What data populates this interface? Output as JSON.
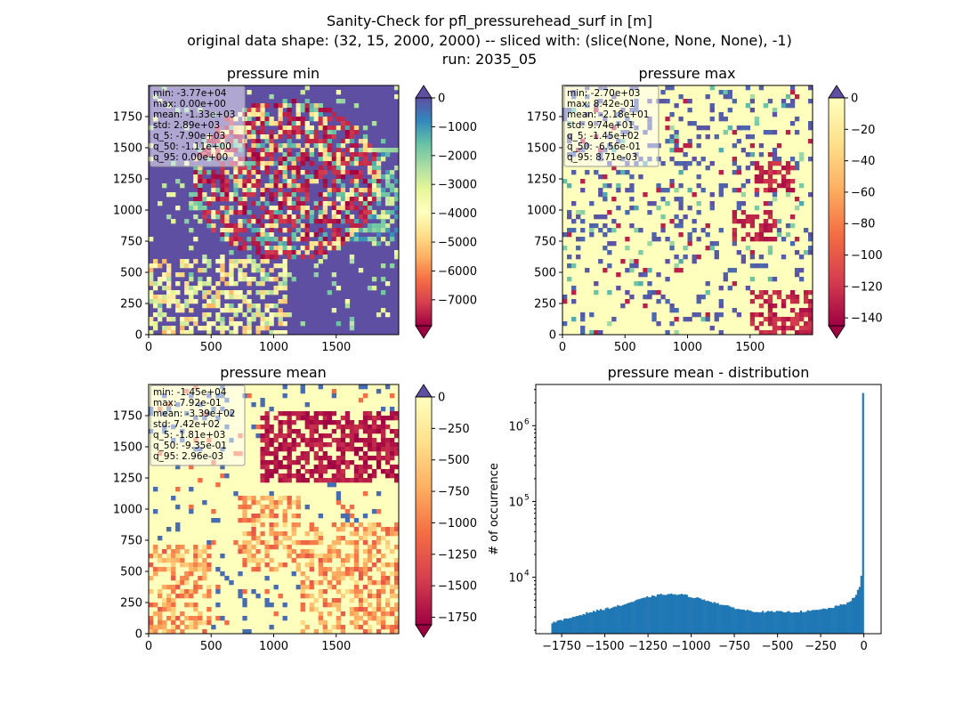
{
  "figure": {
    "title_lines": [
      "Sanity-Check for pfl_pressurehead_surf in [m]",
      "original data shape: (32, 15, 2000, 2000) -- sliced with: (slice(None, None, None), -1)",
      "run: 2035_05"
    ]
  },
  "chart_data": [
    {
      "type": "heatmap",
      "title": "pressure min",
      "colormap": "Spectral",
      "xticks": [
        "0",
        "500",
        "1000",
        "1500"
      ],
      "yticks": [
        "0",
        "250",
        "500",
        "750",
        "1000",
        "1250",
        "1500",
        "1750"
      ],
      "xlim": [
        0,
        2000
      ],
      "ylim": [
        0,
        2000
      ],
      "colorbar": {
        "min": -7900,
        "max": 0,
        "extend": "both",
        "ticks": [
          "0",
          "−1000",
          "−2000",
          "−3000",
          "−4000",
          "−5000",
          "−6000",
          "−7000"
        ]
      },
      "stats": [
        "min: -3.77e+04",
        "max: 0.00e+00",
        "mean: -1.33e+03",
        "std: 2.89e+03",
        "q_5: -7.90e+03",
        "q_50: -1.11e+00",
        "q_95: 0.00e+00"
      ],
      "dominant_color": "#5e4fa2"
    },
    {
      "type": "heatmap",
      "title": "pressure max",
      "colormap": "Spectral",
      "xticks": [
        "0",
        "500",
        "1000",
        "1500"
      ],
      "yticks": [
        "0",
        "250",
        "500",
        "750",
        "1000",
        "1250",
        "1500",
        "1750"
      ],
      "xlim": [
        0,
        2000
      ],
      "ylim": [
        0,
        2000
      ],
      "colorbar": {
        "min": -145,
        "max": 0,
        "extend": "both",
        "ticks": [
          "0",
          "−20",
          "−40",
          "−60",
          "−80",
          "−100",
          "−120",
          "−140"
        ]
      },
      "stats": [
        "min: -2.70e+03",
        "max: 8.42e-01",
        "mean: -2.18e+01",
        "std: 9.74e+01",
        "q_5: -1.45e+02",
        "q_50: -6.56e-01",
        "q_95: 8.71e-03"
      ],
      "dominant_color": "#fefebd"
    },
    {
      "type": "heatmap",
      "title": "pressure mean",
      "colormap": "Spectral",
      "xticks": [
        "0",
        "500",
        "1000",
        "1500"
      ],
      "yticks": [
        "0",
        "250",
        "500",
        "750",
        "1000",
        "1250",
        "1500",
        "1750"
      ],
      "xlim": [
        0,
        2000
      ],
      "ylim": [
        0,
        2000
      ],
      "colorbar": {
        "min": -1810,
        "max": 0,
        "extend": "both",
        "ticks": [
          "0",
          "−250",
          "−500",
          "−750",
          "−1000",
          "−1250",
          "−1500",
          "−1750"
        ]
      },
      "stats": [
        "min: -1.45e+04",
        "max: 7.92e-01",
        "mean: -3.39e+02",
        "std: 7.42e+02",
        "q_5: -1.81e+03",
        "q_50: -9.35e-01",
        "q_95: 2.96e-03"
      ],
      "dominant_color": "#fefebd"
    },
    {
      "type": "bar",
      "title": "pressure mean - distribution",
      "ylabel": "# of occurrence",
      "xlabel": "",
      "yscale": "log",
      "xlim": [
        -1900,
        100
      ],
      "ylim": [
        1800,
        3500000
      ],
      "xticks": [
        "−1750",
        "−1500",
        "−1250",
        "−1000",
        "−750",
        "−500",
        "−250",
        "0"
      ],
      "ytick_labels": [
        "10",
        "10",
        "10"
      ],
      "ytick_exponents": [
        "4",
        "5",
        "6"
      ],
      "bar_color": "#1f77b4",
      "bins": {
        "start": -1810,
        "end": 0
      },
      "profile": {
        "x": [
          -1810,
          -1750,
          -1600,
          -1400,
          -1250,
          -1150,
          -1050,
          -900,
          -800,
          -700,
          -600,
          -500,
          -400,
          -300,
          -200,
          -100,
          -50,
          -25,
          -10,
          -5,
          0
        ],
        "y": [
          2500,
          2700,
          3400,
          4300,
          5500,
          6000,
          5900,
          4900,
          4200,
          3700,
          3500,
          3500,
          3500,
          3600,
          3900,
          4500,
          5500,
          7500,
          12000,
          22000,
          2700000
        ]
      }
    }
  ]
}
